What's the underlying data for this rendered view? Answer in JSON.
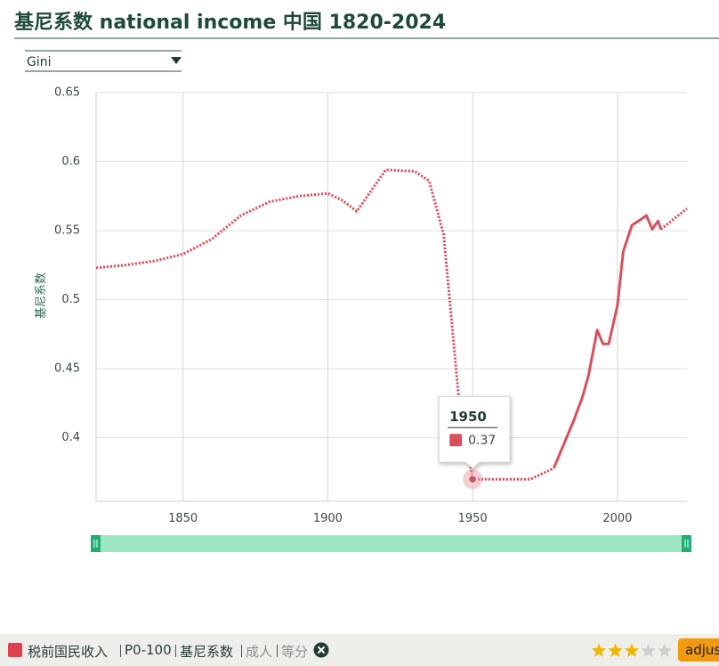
{
  "chart_data": {
    "type": "line",
    "title": "基尼系数 national income 中国 1820-2024",
    "dropdown": "Gini",
    "y_label": "基尼系数",
    "x": [
      1820,
      1830,
      1840,
      1850,
      1860,
      1870,
      1880,
      1890,
      1900,
      1905,
      1910,
      1915,
      1920,
      1930,
      1935,
      1940,
      1945,
      1950,
      1960,
      1970,
      1978,
      1980,
      1985,
      1988,
      1990,
      1993,
      1995,
      1997,
      2000,
      2002,
      2005,
      2008,
      2010,
      2012,
      2014,
      2015,
      2018,
      2021,
      2024
    ],
    "series": [
      {
        "color": "#d9505c",
        "style": "dotted",
        "values": [
          0.523,
          0.525,
          0.528,
          0.533,
          0.544,
          0.561,
          0.571,
          0.575,
          0.577,
          0.572,
          0.564,
          0.579,
          0.594,
          0.593,
          0.586,
          0.547,
          0.433,
          0.37,
          0.37,
          0.37,
          0.378,
          null,
          null,
          null,
          null,
          null,
          null,
          null,
          null,
          null,
          null,
          null,
          null,
          null,
          null,
          0.551,
          0.556,
          0.561,
          0.566
        ]
      },
      {
        "color": "#d9505c",
        "style": "solid",
        "values": [
          null,
          null,
          null,
          null,
          null,
          null,
          null,
          null,
          null,
          null,
          null,
          null,
          null,
          null,
          null,
          null,
          null,
          null,
          null,
          null,
          0.378,
          0.388,
          0.413,
          0.43,
          0.445,
          0.478,
          0.468,
          0.468,
          0.496,
          0.535,
          0.554,
          0.558,
          0.561,
          0.551,
          0.557,
          0.551,
          null,
          null,
          null
        ]
      }
    ],
    "xlim": [
      1820,
      2024
    ],
    "xticks": [
      1850,
      1900,
      1950,
      2000
    ],
    "ylim": [
      0.354,
      0.65
    ],
    "yticks": [
      0.4,
      0.45,
      0.5,
      0.55,
      0.6,
      0.65
    ],
    "grid": true,
    "tooltip": {
      "x": 1950,
      "value": 0.37
    },
    "legend": [
      "税前国民收入",
      "P0-100",
      "基尼系数",
      "成人",
      "等分"
    ],
    "rating": 3,
    "button": "adjus"
  }
}
